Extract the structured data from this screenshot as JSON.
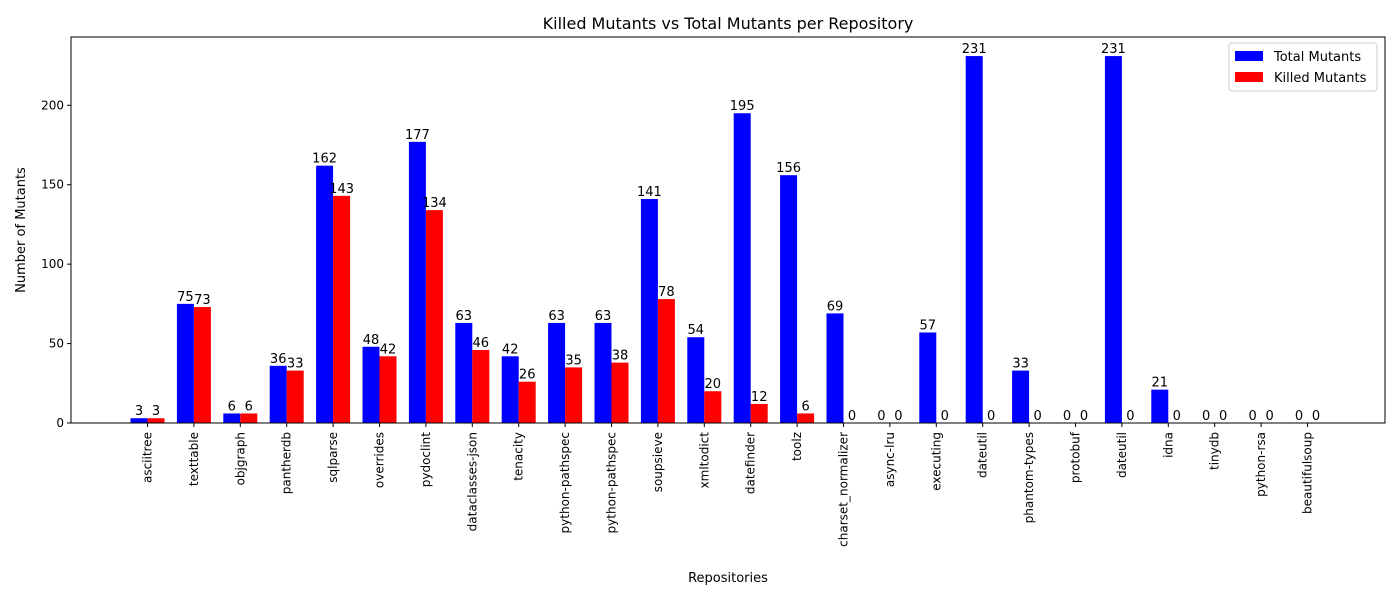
{
  "chart_data": {
    "type": "bar",
    "title": "Killed Mutants vs Total Mutants per Repository",
    "xlabel": "Repositories",
    "ylabel": "Number of Mutants",
    "ylim": [
      0,
      243
    ],
    "yticks": [
      0,
      50,
      100,
      150,
      200
    ],
    "grid": false,
    "legend_position": "top-right",
    "categories": [
      "asciitree",
      "texttable",
      "objgraph",
      "pantherdb",
      "sqlparse",
      "overrides",
      "pydoclint",
      "dataclasses-json",
      "tenacity",
      "python-pathspec",
      "python-pathspec",
      "soupsieve",
      "xmltodict",
      "datefinder",
      "toolz",
      "charset_normalizer",
      "async-lru",
      "executing",
      "dateutil",
      "phantom-types",
      "protobuf",
      "dateutil",
      "idna",
      "tinydb",
      "python-rsa",
      "beautifulsoup"
    ],
    "series": [
      {
        "name": "Total Mutants",
        "color": "#0000ff",
        "values": [
          3,
          75,
          6,
          36,
          162,
          48,
          177,
          63,
          42,
          63,
          63,
          141,
          54,
          195,
          156,
          69,
          0,
          57,
          231,
          33,
          0,
          231,
          21,
          0,
          0,
          0
        ]
      },
      {
        "name": "Killed Mutants",
        "color": "#ff0000",
        "values": [
          3,
          73,
          6,
          33,
          143,
          42,
          134,
          46,
          26,
          35,
          38,
          78,
          20,
          12,
          6,
          0,
          0,
          0,
          0,
          0,
          0,
          0,
          0,
          0,
          0,
          0
        ]
      }
    ]
  }
}
